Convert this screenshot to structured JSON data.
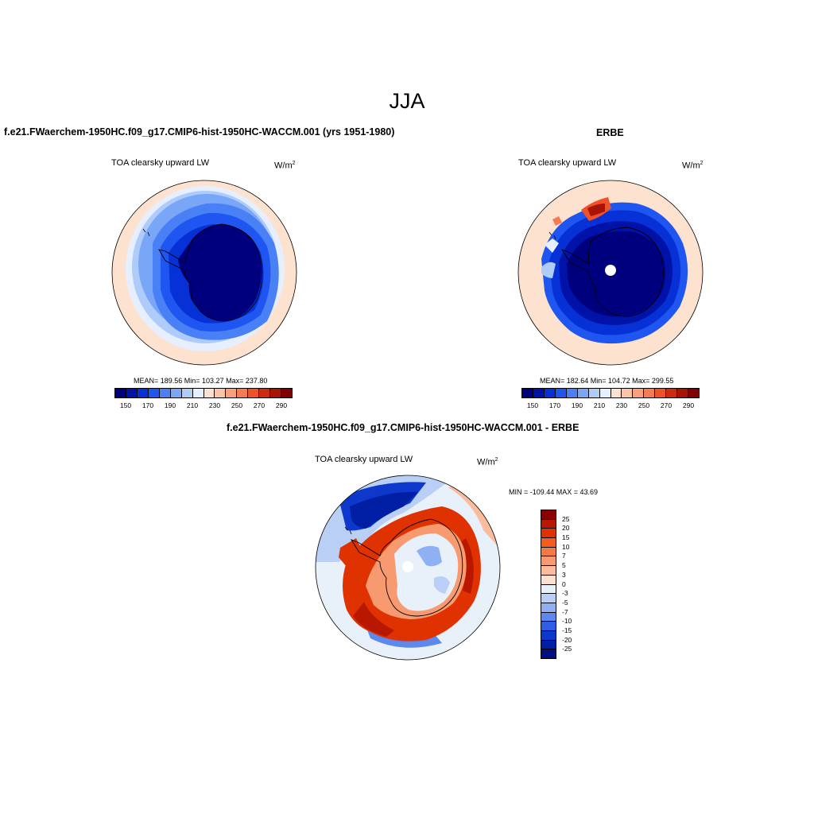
{
  "page": {
    "title": "JJA"
  },
  "panels": [
    {
      "title": "f.e21.FWaerchem-1950HC.f09_g17.CMIP6-hist-1950HC-WACCM.001 (yrs 1951-1980)",
      "variable": "TOA clearsky upward LW",
      "units": "W/m",
      "units_exp": "2",
      "stats": "MEAN= 189.56   Min= 103.27   Max= 237.80"
    },
    {
      "title": "ERBE",
      "variable": "TOA clearsky upward LW",
      "units": "W/m",
      "units_exp": "2",
      "stats": "MEAN= 182.64   Min= 104.72   Max= 299.55"
    },
    {
      "title": "f.e21.FWaerchem-1950HC.f09_g17.CMIP6-hist-1950HC-WACCM.001 - ERBE",
      "variable": "TOA clearsky upward LW",
      "units": "W/m",
      "units_exp": "2",
      "stats": "MIN = -109.44 MAX =  43.69"
    }
  ],
  "colorbars": {
    "absolute": {
      "labels": [
        "150",
        "170",
        "190",
        "210",
        "230",
        "250",
        "270",
        "290"
      ],
      "colors": [
        "#00007f",
        "#0012a8",
        "#0531d6",
        "#1f55f0",
        "#4a80f5",
        "#7aa6f8",
        "#aecbfa",
        "#e6efff",
        "#fde2d0",
        "#fbc4a6",
        "#f8a07c",
        "#f57c52",
        "#ef5226",
        "#cf2a0d",
        "#a81404",
        "#7f0000"
      ]
    },
    "difference": {
      "labels": [
        "25",
        "20",
        "15",
        "10",
        "7",
        "5",
        "3",
        "0",
        "-3",
        "-5",
        "-7",
        "-10",
        "-15",
        "-20",
        "-25"
      ],
      "colors": [
        "#8b0000",
        "#b81800",
        "#e03200",
        "#f25c1f",
        "#f47a45",
        "#f79a70",
        "#fbbb9c",
        "#fde0d0",
        "#e8f0fa",
        "#b9cff5",
        "#8fb0f3",
        "#5d88ee",
        "#2e5ee6",
        "#0e38cc",
        "#001fa5",
        "#000e80"
      ]
    }
  },
  "chart_data": [
    {
      "type": "heatmap",
      "title": "f.e21.FWaerchem-1950HC.f09_g17.CMIP6-hist-1950HC-WACCM.001 (yrs 1951-1980)",
      "projection": "south polar stereographic",
      "variable": "TOA clearsky upward LW",
      "units": "W/m2",
      "mean": 189.56,
      "min": 103.27,
      "max": 237.8,
      "levels": [
        150,
        160,
        170,
        180,
        190,
        200,
        210,
        220,
        230,
        240,
        250,
        260,
        270,
        280,
        290
      ],
      "regions": [
        {
          "region": "Antarctic interior",
          "value": 140
        },
        {
          "region": "Antarctic coastal ring",
          "value": 165
        },
        {
          "region": "sea-ice zone",
          "value": 195
        },
        {
          "region": "mid-latitude ocean",
          "value": 232
        }
      ]
    },
    {
      "type": "heatmap",
      "title": "ERBE",
      "projection": "south polar stereographic",
      "variable": "TOA clearsky upward LW",
      "units": "W/m2",
      "mean": 182.64,
      "min": 104.72,
      "max": 299.55,
      "levels": [
        150,
        160,
        170,
        180,
        190,
        200,
        210,
        220,
        230,
        240,
        250,
        260,
        270,
        280,
        290
      ],
      "regions": [
        {
          "region": "Antarctic interior",
          "value": 140
        },
        {
          "region": "ocean south of 60S",
          "value": 165
        },
        {
          "region": "mid-latitude ocean",
          "value": 232
        },
        {
          "region": "warm patches near 60S",
          "value": 265
        }
      ]
    },
    {
      "type": "heatmap",
      "title": "f.e21.FWaerchem-1950HC.f09_g17.CMIP6-hist-1950HC-WACCM.001 - ERBE",
      "projection": "south polar stereographic",
      "variable": "TOA clearsky upward LW",
      "units": "W/m2",
      "min": -109.44,
      "max": 43.69,
      "levels": [
        -25,
        -20,
        -15,
        -10,
        -7,
        -5,
        -3,
        0,
        3,
        5,
        7,
        10,
        15,
        20,
        25
      ],
      "regions": [
        {
          "region": "Antarctic interior",
          "value": 2
        },
        {
          "region": "Antarctic coast and sea ice",
          "value": 26
        },
        {
          "region": "Pacific sector ocean",
          "value": -20
        },
        {
          "region": "mid-latitude ocean",
          "value": -2
        }
      ]
    }
  ]
}
